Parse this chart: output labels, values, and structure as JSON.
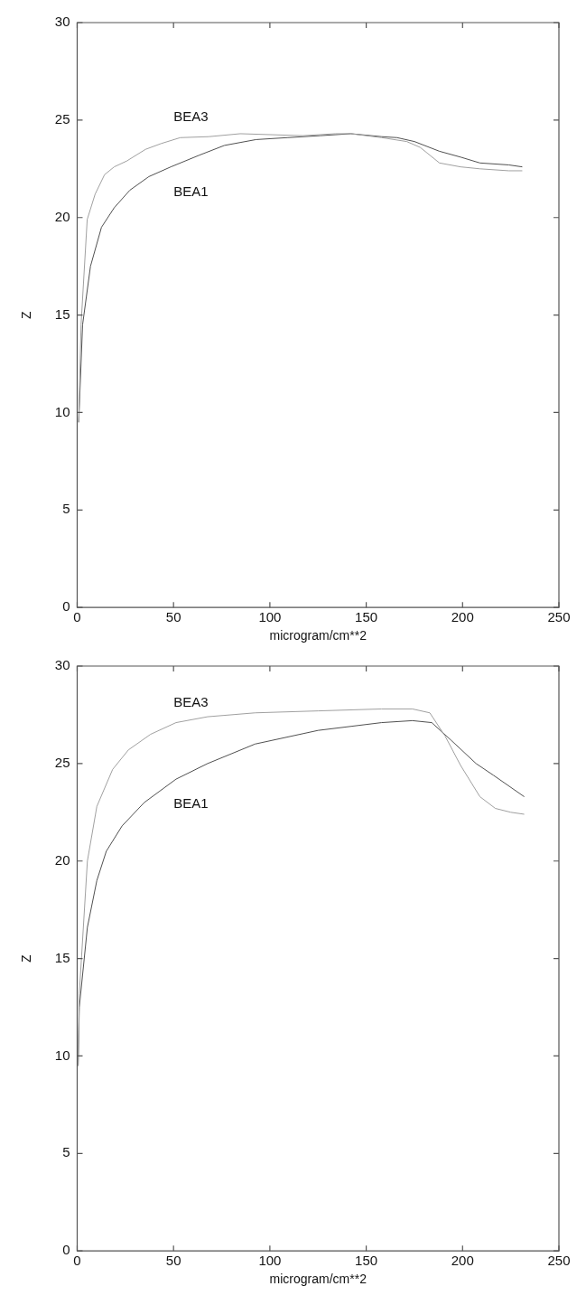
{
  "chart_data": [
    {
      "type": "line",
      "xlabel": "microgram/cm**2",
      "ylabel": "Z",
      "xlim": [
        0,
        250
      ],
      "ylim": [
        0,
        30
      ],
      "xticks": [
        0,
        50,
        100,
        150,
        200,
        250
      ],
      "yticks": [
        0,
        5,
        10,
        15,
        20,
        25,
        30
      ],
      "marker": "none",
      "line_style": "solid",
      "series": [
        {
          "name": "BEA3",
          "color": "#a0a0a0",
          "x": [
            0.8,
            2,
            5.2,
            9.3,
            14.2,
            19.2,
            25.7,
            35.5,
            43.7,
            53.5,
            68.3,
            84.6,
            101,
            117,
            134,
            142,
            158,
            171,
            178,
            188,
            199,
            209,
            224,
            231
          ],
          "values": [
            9.5,
            14.5,
            19.9,
            21.2,
            22.2,
            22.6,
            22.9,
            23.5,
            23.8,
            24.1,
            24.15,
            24.3,
            24.25,
            24.2,
            24.3,
            24.3,
            24.1,
            23.9,
            23.6,
            22.8,
            22.6,
            22.5,
            22.4,
            22.4
          ]
        },
        {
          "name": "BEA1",
          "color": "#505050",
          "x": [
            0.8,
            2.8,
            6.9,
            12.6,
            19.2,
            27.3,
            37.2,
            48.6,
            63.4,
            76.4,
            92.8,
            109,
            126,
            142,
            158,
            166,
            175,
            188,
            199,
            209,
            224,
            231
          ],
          "values": [
            9.5,
            14.5,
            17.5,
            19.5,
            20.5,
            21.4,
            22.1,
            22.6,
            23.2,
            23.7,
            24.0,
            24.1,
            24.2,
            24.3,
            24.15,
            24.1,
            23.9,
            23.4,
            23.1,
            22.8,
            22.7,
            22.6
          ]
        }
      ],
      "legend": false
    },
    {
      "type": "line",
      "xlabel": "microgram/cm**2",
      "ylabel": "Z",
      "xlim": [
        0,
        250
      ],
      "ylim": [
        0,
        30
      ],
      "xticks": [
        0,
        50,
        100,
        150,
        200,
        250
      ],
      "yticks": [
        0,
        5,
        10,
        15,
        20,
        25,
        30
      ],
      "marker": "none",
      "line_style": "solid",
      "series": [
        {
          "name": "BEA3",
          "color": "#a0a0a0",
          "x": [
            0.5,
            1.1,
            5.3,
            10.2,
            18.4,
            26.6,
            38.1,
            51.3,
            67.7,
            92.3,
            125,
            158,
            174,
            183,
            191,
            199,
            209,
            217,
            225,
            232
          ],
          "values": [
            9.5,
            13.2,
            20.0,
            22.8,
            24.7,
            25.7,
            26.5,
            27.1,
            27.4,
            27.6,
            27.7,
            27.8,
            27.8,
            27.6,
            26.4,
            24.9,
            23.3,
            22.7,
            22.5,
            22.4
          ]
        },
        {
          "name": "BEA1",
          "color": "#505050",
          "x": [
            0.5,
            1.1,
            5.3,
            10.2,
            15.1,
            23.3,
            34.8,
            51.3,
            67.7,
            92.3,
            125,
            158,
            174,
            184,
            194,
            207,
            216,
            232
          ],
          "values": [
            9.5,
            12.5,
            16.6,
            19.0,
            20.5,
            21.8,
            23.0,
            24.2,
            25.0,
            26.0,
            26.7,
            27.1,
            27.2,
            27.1,
            26.2,
            25.0,
            24.4,
            23.3
          ]
        }
      ],
      "legend": false
    }
  ]
}
